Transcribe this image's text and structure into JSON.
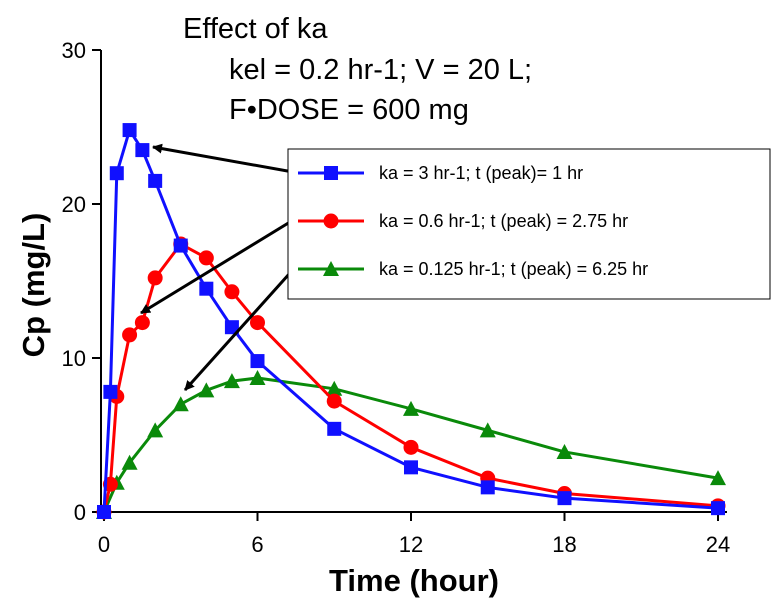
{
  "chart_data": {
    "type": "line",
    "title_lines": [
      "Effect of ka",
      "kel = 0.2 hr-1; V = 20 L;",
      "F•DOSE = 600 mg"
    ],
    "xlabel": "Time (hour)",
    "ylabel": "Cp (mg/L)",
    "xlim": [
      0,
      24
    ],
    "ylim": [
      0,
      30
    ],
    "x_ticks": [
      0,
      6,
      12,
      18,
      24
    ],
    "y_ticks": [
      0,
      10,
      20,
      30
    ],
    "grid": false,
    "legend_position": "right",
    "series": [
      {
        "name": "ka = 3 hr-1; t (peak)= 1 hr",
        "color": "#1010ff",
        "marker": "square",
        "x": [
          0,
          0.25,
          0.5,
          1,
          1.5,
          2,
          3,
          4,
          5,
          6,
          9,
          12,
          15,
          18,
          24
        ],
        "y": [
          0,
          7.8,
          22,
          24.8,
          23.5,
          21.5,
          17.3,
          14.5,
          12,
          9.8,
          5.4,
          2.9,
          1.6,
          0.9,
          0.25
        ]
      },
      {
        "name": "ka = 0.6 hr-1; t (peak) = 2.75 hr",
        "color": "#ff0000",
        "marker": "circle",
        "x": [
          0,
          0.25,
          0.5,
          1,
          1.5,
          2,
          3,
          4,
          5,
          6,
          9,
          12,
          15,
          18,
          24
        ],
        "y": [
          0,
          1.8,
          7.5,
          11.5,
          12.3,
          15.2,
          17.4,
          16.5,
          14.3,
          12.3,
          7.2,
          4.2,
          2.2,
          1.2,
          0.4
        ]
      },
      {
        "name": "ka = 0.125 hr-1; t (peak) = 6.25 hr",
        "color": "#0a8a0a",
        "marker": "triangle",
        "x": [
          0,
          0.5,
          1,
          2,
          3,
          4,
          5,
          6,
          9,
          12,
          15,
          18,
          24
        ],
        "y": [
          0,
          1.9,
          3.2,
          5.3,
          7,
          7.9,
          8.5,
          8.7,
          8,
          6.7,
          5.3,
          3.9,
          2.2
        ]
      }
    ]
  }
}
